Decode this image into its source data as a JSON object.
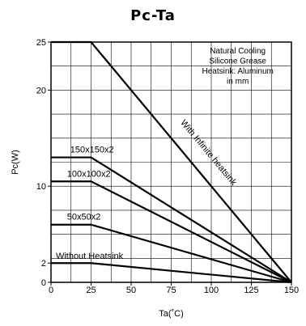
{
  "chart_data": {
    "type": "line",
    "title": "Pc-Ta",
    "xlabel": "Ta(˚C)",
    "ylabel": "Pc(W)",
    "xlim": [
      0,
      150
    ],
    "ylim": [
      0,
      25
    ],
    "grid": true,
    "x_ticks": [
      0,
      25,
      50,
      75,
      100,
      125,
      150
    ],
    "x_tick_labels": [
      "0",
      "25",
      "50",
      "75",
      "100",
      "125",
      "150"
    ],
    "y_ticks": [
      0,
      2,
      10,
      20,
      25
    ],
    "y_tick_labels": [
      "0",
      "2",
      "10",
      "20",
      "25"
    ],
    "note_lines": [
      "Natural Cooling",
      "Silicone Grease",
      "Heatsink: Aluminum",
      "in mm"
    ],
    "series": [
      {
        "name": "With Infinite heatsink",
        "x": [
          0,
          25,
          150
        ],
        "y": [
          25,
          25,
          0
        ]
      },
      {
        "name": "150x150x2",
        "x": [
          0,
          25,
          150
        ],
        "y": [
          13,
          13,
          0
        ]
      },
      {
        "name": "100x100x2",
        "x": [
          0,
          25,
          150
        ],
        "y": [
          10.5,
          10.5,
          0
        ]
      },
      {
        "name": "50x50x2",
        "x": [
          0,
          25,
          150
        ],
        "y": [
          6,
          6,
          0
        ]
      },
      {
        "name": "Without Heatsink",
        "x": [
          0,
          25,
          150
        ],
        "y": [
          2,
          2,
          0
        ]
      }
    ]
  }
}
